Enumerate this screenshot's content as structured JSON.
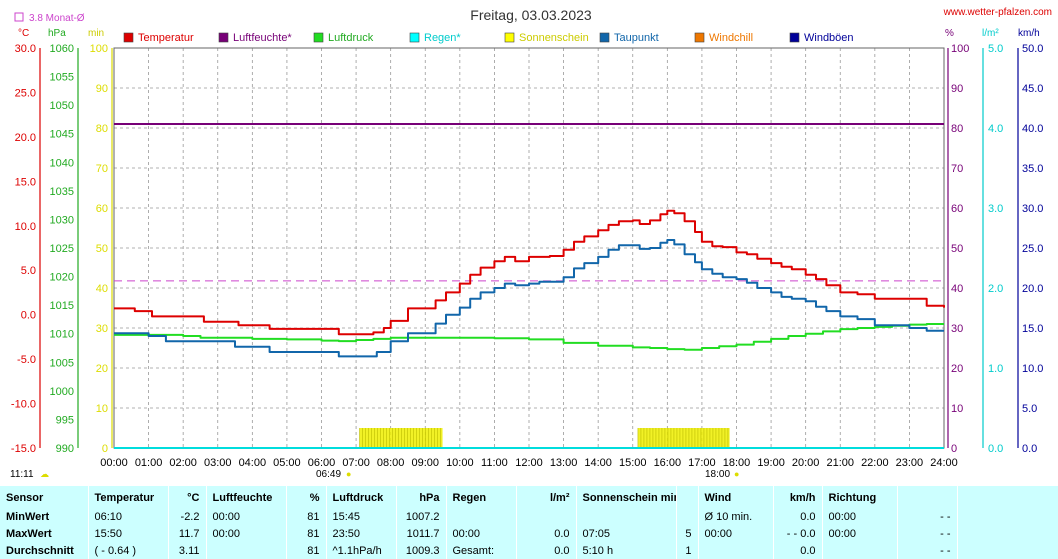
{
  "title": "Freitag, 03.03.2023",
  "site": "www.wetter-pfalzen.com",
  "avg_label": "3.8 Monat-Ø",
  "colors": {
    "temperature": "#dd0000",
    "humidity": "#770077",
    "pressure": "#22dd22",
    "rain": "#00dddd",
    "sunshine": "#eeee00",
    "dewpoint": "#1166aa",
    "windchill": "#ee7700",
    "gusts": "#000099",
    "avg_line": "#cc44cc"
  },
  "legend": [
    {
      "label": "Temperatur",
      "color": "#dd0000",
      "text_color": "#dd0000"
    },
    {
      "label": "Luftfeuchte*",
      "color": "#770077",
      "text_color": "#770077"
    },
    {
      "label": "Luftdruck",
      "color": "#22dd22",
      "text_color": "#22aa22"
    },
    {
      "label": "Regen*",
      "color": "#00ffff",
      "text_color": "#00cccc"
    },
    {
      "label": "Sonnenschein",
      "color": "#ffff00",
      "text_color": "#cccc00"
    },
    {
      "label": "Taupunkt",
      "color": "#1166aa",
      "text_color": "#1166aa"
    },
    {
      "label": "Windchill",
      "color": "#ee7700",
      "text_color": "#ee7700"
    },
    {
      "label": "Windböen",
      "color": "#000099",
      "text_color": "#000099"
    }
  ],
  "axis_units": {
    "temp": "°C",
    "pressure": "hPa",
    "sun": "min",
    "hum": "%",
    "rain": "l/m²",
    "wind": "km/h"
  },
  "chart_data": {
    "type": "line",
    "x_ticks": [
      "00:00",
      "01:00",
      "02:00",
      "03:00",
      "04:00",
      "05:00",
      "06:00",
      "07:00",
      "08:00",
      "09:00",
      "10:00",
      "11:00",
      "12:00",
      "13:00",
      "14:00",
      "15:00",
      "16:00",
      "17:00",
      "18:00",
      "19:00",
      "20:00",
      "21:00",
      "22:00",
      "23:00",
      "24:00"
    ],
    "axes": {
      "temp": {
        "min": -15,
        "max": 30,
        "ticks": [
          "30.0",
          "25.0",
          "20.0",
          "15.0",
          "10.0",
          "5.0",
          "0.0",
          "-5.0",
          "-10.0",
          "-15.0"
        ]
      },
      "pressure": {
        "min": 990,
        "max": 1060,
        "ticks": [
          "1060",
          "1055",
          "1050",
          "1045",
          "1040",
          "1035",
          "1030",
          "1025",
          "1020",
          "1015",
          "1010",
          "1005",
          "1000",
          "995",
          "990"
        ]
      },
      "sun": {
        "min": 0,
        "max": 100,
        "ticks": [
          "100",
          "90",
          "80",
          "70",
          "60",
          "50",
          "40",
          "30",
          "20",
          "10",
          "0"
        ]
      },
      "hum": {
        "min": 0,
        "max": 100,
        "ticks": [
          "100",
          "90",
          "80",
          "70",
          "60",
          "50",
          "40",
          "30",
          "20",
          "10",
          "0"
        ]
      },
      "rain": {
        "min": 0,
        "max": 5,
        "ticks": [
          "5.0",
          "4.0",
          "3.0",
          "2.0",
          "1.0",
          "0.0"
        ]
      },
      "wind": {
        "min": 0,
        "max": 50,
        "ticks": [
          "50.0",
          "45.0",
          "40.0",
          "35.0",
          "30.0",
          "25.0",
          "20.0",
          "15.0",
          "10.0",
          "5.0",
          "0.0"
        ]
      }
    },
    "monthly_avg_temp": 3.8,
    "series": [
      {
        "key": "temperature",
        "axis": "temp",
        "x": [
          0,
          0.5,
          0.6,
          1,
          1.1,
          2,
          2.5,
          2.6,
          3,
          3.5,
          3.6,
          4,
          4.5,
          5,
          5.5,
          6,
          6.5,
          7,
          7.2,
          7.5,
          7.8,
          8,
          8.5,
          9,
          9.3,
          9.6,
          10,
          10.3,
          10.6,
          11,
          11.3,
          11.6,
          12,
          12.3,
          12.6,
          13,
          13.3,
          13.6,
          14,
          14.3,
          14.6,
          15,
          15.2,
          15.5,
          15.8,
          16,
          16.2,
          16.5,
          16.8,
          17,
          17.3,
          17.6,
          18,
          18.3,
          18.6,
          19,
          19.3,
          19.6,
          20,
          20.3,
          20.6,
          21,
          21.5,
          22,
          22.5,
          23,
          23.5,
          24
        ],
        "y": [
          0.7,
          0.7,
          0.4,
          0.4,
          -0.2,
          -0.2,
          -0.2,
          -0.8,
          -0.8,
          -0.8,
          -1.2,
          -1.2,
          -1.6,
          -1.6,
          -1.6,
          -1.6,
          -2.2,
          -2.2,
          -2.2,
          -2.0,
          -1.5,
          -0.7,
          0.7,
          0.7,
          1.6,
          2.5,
          3.5,
          4.5,
          5.3,
          6.0,
          6.5,
          6.0,
          6.5,
          6.5,
          6.6,
          7.3,
          8.2,
          8.8,
          9.5,
          10.1,
          10.5,
          10.6,
          10.2,
          10.6,
          11.3,
          11.7,
          11.4,
          10.5,
          9.3,
          8.2,
          7.7,
          7.6,
          7.0,
          6.8,
          6.3,
          5.8,
          5.4,
          5.1,
          4.5,
          4.0,
          3.3,
          2.5,
          2.3,
          1.8,
          1.8,
          1.8,
          1.0,
          0.8
        ]
      },
      {
        "key": "dewpoint",
        "axis": "temp",
        "x": [
          0,
          0.5,
          1,
          1.5,
          2,
          2.5,
          3,
          3.5,
          4,
          4.5,
          5,
          5.5,
          6,
          6.5,
          7,
          7.2,
          7.6,
          8,
          8.5,
          9,
          9.3,
          9.6,
          10,
          10.3,
          10.6,
          11,
          11.3,
          11.6,
          12,
          12.3,
          12.6,
          13,
          13.3,
          13.6,
          14,
          14.3,
          14.6,
          15,
          15.2,
          15.5,
          15.8,
          16,
          16.2,
          16.5,
          16.8,
          17,
          17.3,
          17.6,
          18,
          18.3,
          18.6,
          19,
          19.3,
          19.6,
          20,
          20.3,
          20.6,
          21,
          21.5,
          22,
          22.5,
          23,
          23.5,
          24
        ],
        "y": [
          -2.1,
          -2.1,
          -2.4,
          -3.0,
          -3.0,
          -3.0,
          -3.0,
          -3.6,
          -3.6,
          -4.2,
          -4.2,
          -4.2,
          -4.2,
          -4.7,
          -4.7,
          -4.7,
          -4.2,
          -3.0,
          -2.1,
          -2.1,
          -1.0,
          0.0,
          0.8,
          1.8,
          2.5,
          3.0,
          3.5,
          3.3,
          3.5,
          3.7,
          3.7,
          4.2,
          5.2,
          5.8,
          6.5,
          7.3,
          7.8,
          7.8,
          7.4,
          7.5,
          8.1,
          8.4,
          7.9,
          6.8,
          5.9,
          5.1,
          4.6,
          4.2,
          4.0,
          3.6,
          3.0,
          2.5,
          2.0,
          1.8,
          1.5,
          0.9,
          0.4,
          -0.2,
          -0.5,
          -1.2,
          -1.2,
          -1.5,
          -1.8,
          -1.8
        ]
      },
      {
        "key": "pressure",
        "axis": "pressure",
        "x": [
          0,
          1,
          2,
          2.5,
          3,
          4,
          5,
          6,
          6.5,
          7,
          7.5,
          8,
          9,
          10,
          11,
          12,
          13,
          14,
          15,
          15.5,
          16,
          16.5,
          17,
          17.5,
          18,
          18.5,
          19,
          19.5,
          20,
          20.5,
          21,
          21.5,
          22,
          22.5,
          23,
          23.5,
          24
        ],
        "y": [
          1009.8,
          1009.8,
          1009.6,
          1009.3,
          1009.3,
          1009.1,
          1009.0,
          1008.8,
          1008.7,
          1008.9,
          1009.1,
          1009.3,
          1009.3,
          1009.3,
          1009.2,
          1009.0,
          1008.4,
          1007.9,
          1007.6,
          1007.5,
          1007.3,
          1007.2,
          1007.5,
          1007.8,
          1008.1,
          1008.6,
          1009.1,
          1009.6,
          1010.0,
          1010.4,
          1010.8,
          1011.0,
          1011.2,
          1011.4,
          1011.6,
          1011.7,
          1011.7
        ]
      },
      {
        "key": "humidity",
        "axis": "hum",
        "x": [
          0,
          24
        ],
        "y": [
          81,
          81
        ]
      },
      {
        "key": "rain",
        "axis": "rain",
        "x": [
          0,
          24
        ],
        "y": [
          0,
          0
        ]
      }
    ],
    "sunshine_bars": [
      {
        "from": 7.1,
        "to": 9.5,
        "value": 5
      },
      {
        "from": 15.15,
        "to": 17.8,
        "value": 5
      }
    ],
    "markers": {
      "moon_time": "11:11",
      "sunrise": "06:49",
      "sunset": "18:00"
    }
  },
  "stats": {
    "headers": [
      {
        "label": "Sensor",
        "unit": ""
      },
      {
        "label": "Temperatur",
        "unit": "°C"
      },
      {
        "label": "Luftfeuchte",
        "unit": "%"
      },
      {
        "label": "Luftdruck",
        "unit": "hPa"
      },
      {
        "label": "Regen",
        "unit": "l/m²"
      },
      {
        "label": "Sonnenschein min",
        "unit": ""
      },
      {
        "label": "Wind",
        "unit": "km/h"
      },
      {
        "label": "Richtung",
        "unit": ""
      }
    ],
    "rows": [
      {
        "label": "MinWert",
        "temp_time": "06:10",
        "temp_val": "-2.2",
        "hum_time": "00:00",
        "hum_val": "81",
        "press_time": "15:45",
        "press_val": "1007.2",
        "rain_time": "",
        "rain_val": "",
        "sun_time": "",
        "sun_val": "",
        "wind_time": "Ø 10 min.",
        "wind_val": "0.0",
        "dir_time": "00:00",
        "dir_val": "- -"
      },
      {
        "label": "MaxWert",
        "temp_time": "15:50",
        "temp_val": "11.7",
        "hum_time": "00:00",
        "hum_val": "81",
        "press_time": "23:50",
        "press_val": "1011.7",
        "rain_time": "00:00",
        "rain_val": "0.0",
        "sun_time": "07:05",
        "sun_val": "5",
        "wind_time": "00:00",
        "wind_val": "- - 0.0",
        "dir_time": "00:00",
        "dir_val": "- -"
      },
      {
        "label": "Durchschnitt",
        "temp_time": "( - 0.64 )",
        "temp_val": "3.11",
        "hum_time": "",
        "hum_val": "81",
        "press_time": "^1.1hPa/h",
        "press_val": "1009.3",
        "rain_time": "Gesamt:",
        "rain_val": "0.0",
        "sun_time": "5:10 h",
        "sun_val": "1",
        "wind_time": "",
        "wind_val": "0.0",
        "dir_time": "",
        "dir_val": "- -"
      }
    ]
  }
}
